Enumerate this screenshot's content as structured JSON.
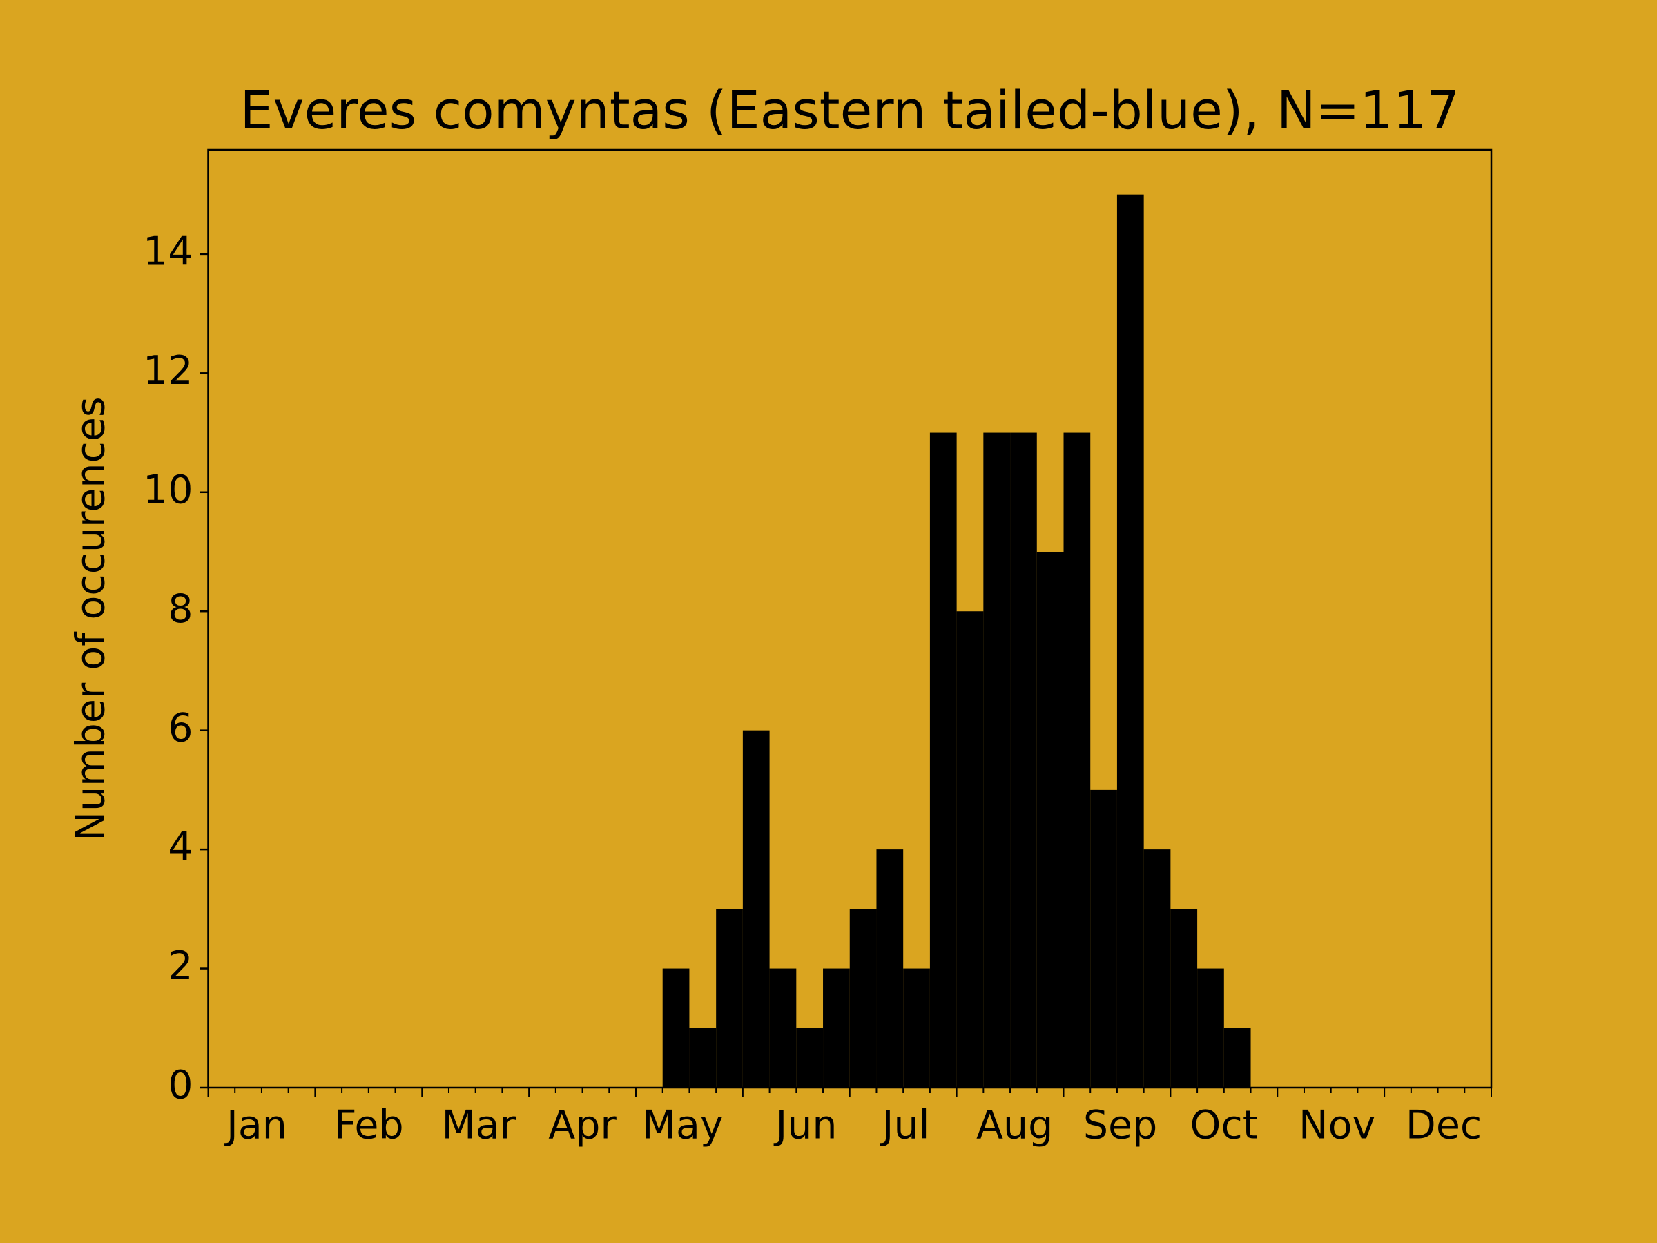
{
  "chart_data": {
    "type": "histogram",
    "title": "Everes comyntas (Eastern tailed-blue), N=117",
    "y_label": "Number of occurences",
    "bins": [
      0,
      1,
      2,
      3,
      4,
      5,
      6,
      7,
      8,
      9,
      10,
      11,
      12,
      13,
      14,
      15,
      16,
      17,
      18,
      19,
      20,
      21,
      22,
      23,
      24,
      25,
      26,
      27,
      28,
      29,
      30,
      31,
      32,
      33,
      34,
      35,
      36,
      37,
      38,
      39,
      40,
      41,
      42,
      43,
      44,
      45,
      46,
      47,
      48
    ],
    "counts": [
      0,
      0,
      0,
      0,
      0,
      0,
      0,
      0,
      0,
      0,
      0,
      0,
      0,
      0,
      0,
      0,
      0,
      2,
      1,
      3,
      6,
      2,
      1,
      2,
      3,
      4,
      2,
      11,
      8,
      11,
      11,
      9,
      11,
      5,
      15,
      4,
      3,
      2,
      1,
      0,
      0,
      0,
      0,
      0,
      0,
      0,
      0,
      0
    ],
    "color": "#000000",
    "background": "#daa520",
    "xlim": [
      0,
      48
    ],
    "xticks": [
      {
        "value": 1.82,
        "label": "Jan"
      },
      {
        "value": 6.01,
        "label": "Feb"
      },
      {
        "value": 10.12,
        "label": "Mar"
      },
      {
        "value": 14.0,
        "label": "Apr"
      },
      {
        "value": 17.75,
        "label": "May"
      },
      {
        "value": 22.38,
        "label": "Jun"
      },
      {
        "value": 26.1,
        "label": "Jul"
      },
      {
        "value": 30.17,
        "label": "Aug"
      },
      {
        "value": 34.12,
        "label": "Sep"
      },
      {
        "value": 38.0,
        "label": "Oct"
      },
      {
        "value": 42.23,
        "label": "Nov"
      },
      {
        "value": 46.22,
        "label": "Dec"
      }
    ],
    "ylim": [
      0,
      15.75
    ],
    "yticks": [
      0,
      2,
      4,
      6,
      8,
      10,
      12,
      14
    ],
    "grid": false
  }
}
